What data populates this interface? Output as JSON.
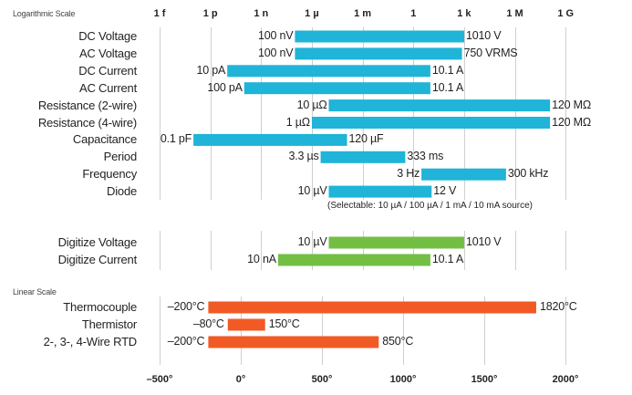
{
  "chart_data": [
    {
      "type": "bar",
      "subtype": "floating-range",
      "title": "Logarithmic Scale",
      "scale": "log10",
      "xlim": [
        1e-15,
        1000000000.0
      ],
      "ticks": [
        {
          "label": "1 f",
          "value": 1e-15
        },
        {
          "label": "1 p",
          "value": 1e-12
        },
        {
          "label": "1 n",
          "value": 1e-09
        },
        {
          "label": "1 µ",
          "value": 1e-06
        },
        {
          "label": "1 m",
          "value": 0.001
        },
        {
          "label": "1",
          "value": 1
        },
        {
          "label": "1 k",
          "value": 1000.0
        },
        {
          "label": "1 M",
          "value": 1000000.0
        },
        {
          "label": "1 G",
          "value": 1000000000.0
        }
      ],
      "grid": true,
      "color": "#1fb4d8",
      "rows": [
        {
          "name": "DC Voltage",
          "low": 1e-07,
          "high": 1010,
          "low_label": "100 nV",
          "high_label": "1010 V"
        },
        {
          "name": "AC Voltage",
          "low": 1e-07,
          "high": 750,
          "low_label": "100 nV",
          "high_label": "750 VRMS"
        },
        {
          "name": "DC Current",
          "low": 1e-11,
          "high": 10.1,
          "low_label": "10 pA",
          "high_label": "10.1 A"
        },
        {
          "name": "AC Current",
          "low": 1e-10,
          "high": 10.1,
          "low_label": "100 pA",
          "high_label": "10.1 A"
        },
        {
          "name": "Resistance (2-wire)",
          "low": 1e-05,
          "high": 120000000.0,
          "low_label": "10 µΩ",
          "high_label": "120 MΩ"
        },
        {
          "name": "Resistance (4-wire)",
          "low": 1e-06,
          "high": 120000000.0,
          "low_label": "1 µΩ",
          "high_label": "120 MΩ"
        },
        {
          "name": "Capacitance",
          "low": 1e-13,
          "high": 0.00012,
          "low_label": "0.1 pF",
          "high_label": "120 µF"
        },
        {
          "name": "Period",
          "low": 3.3e-06,
          "high": 0.333,
          "low_label": "3.3 µs",
          "high_label": "333 ms"
        },
        {
          "name": "Frequency",
          "low": 3,
          "high": 300000.0,
          "low_label": "3 Hz",
          "high_label": "300 kHz"
        },
        {
          "name": "Diode",
          "low": 1e-05,
          "high": 12,
          "low_label": "10 µV",
          "high_label": "12 V"
        }
      ],
      "annotation": "(Selectable: 10 µA / 100 µA / 1 mA / 10 mA source)"
    },
    {
      "type": "bar",
      "subtype": "floating-range",
      "title": "",
      "scale": "log10",
      "color": "#72bf44",
      "grid": true,
      "rows": [
        {
          "name": "Digitize Voltage",
          "low": 1e-05,
          "high": 1010,
          "low_label": "10 µV",
          "high_label": "1010 V"
        },
        {
          "name": "Digitize Current",
          "low": 1e-08,
          "high": 10.1,
          "low_label": "10 nA",
          "high_label": "10.1 A"
        }
      ]
    },
    {
      "type": "bar",
      "subtype": "floating-range",
      "title": "Linear Scale",
      "scale": "linear",
      "xlim": [
        -500,
        2000
      ],
      "ticks": [
        {
          "label": "–500°",
          "value": -500
        },
        {
          "label": "0°",
          "value": 0
        },
        {
          "label": "500°",
          "value": 500
        },
        {
          "label": "1000°",
          "value": 1000
        },
        {
          "label": "1500°",
          "value": 1500
        },
        {
          "label": "2000°",
          "value": 2000
        }
      ],
      "grid": true,
      "color": "#f15a24",
      "rows": [
        {
          "name": "Thermocouple",
          "low": -200,
          "high": 1820,
          "low_label": "–200°C",
          "high_label": "1820°C"
        },
        {
          "name": "Thermistor",
          "low": -80,
          "high": 150,
          "low_label": "–80°C",
          "high_label": "150°C"
        },
        {
          "name": "2-, 3-, 4-Wire RTD",
          "low": -200,
          "high": 850,
          "low_label": "–200°C",
          "high_label": "850°C"
        }
      ]
    }
  ]
}
